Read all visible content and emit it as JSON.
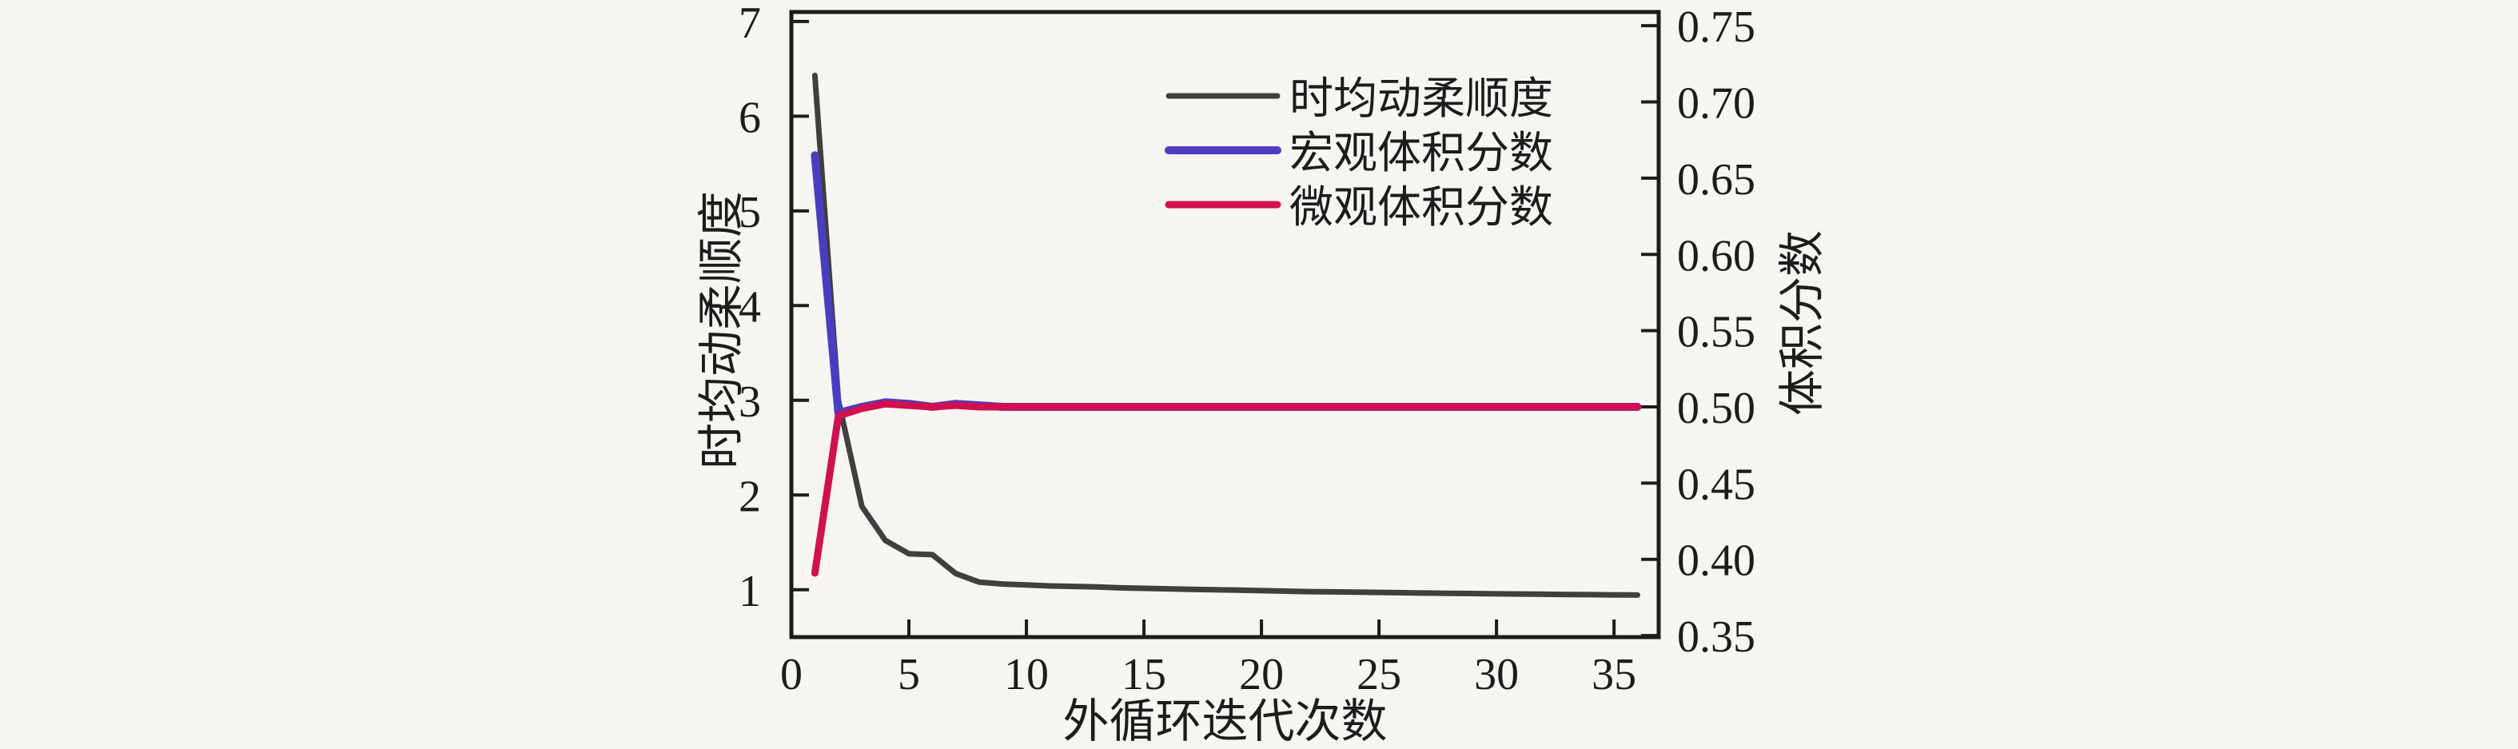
{
  "figure": {
    "background": "#f6f5f2",
    "axis_color": "#1c1c1c"
  },
  "chart_data": {
    "type": "line",
    "title": "",
    "xlabel": "外循环迭代次数",
    "ylabel_left": "时均动柔顺度",
    "ylabel_right": "体积分数",
    "grid": false,
    "legend_position": "upper center",
    "xlim": [
      0,
      36.9
    ],
    "x_ticks": [
      0,
      5,
      10,
      15,
      20,
      25,
      30,
      35
    ],
    "left_ylim": [
      0.5,
      7.1
    ],
    "left_ticks": [
      7,
      6,
      5,
      4,
      3,
      2,
      1
    ],
    "right_ylim": [
      0.349,
      0.759
    ],
    "right_ticks": [
      0.75,
      0.7,
      0.65,
      0.6,
      0.55,
      0.5,
      0.45,
      0.4,
      0.35
    ],
    "x": [
      1,
      2,
      3,
      4,
      5,
      6,
      7,
      8,
      9,
      10,
      11,
      12,
      13,
      14,
      15,
      16,
      17,
      18,
      19,
      20,
      21,
      22,
      23,
      24,
      25,
      26,
      27,
      28,
      29,
      30,
      31,
      32,
      33,
      34,
      35,
      36
    ],
    "series": [
      {
        "id": "series-time-averaged-dynamic-compliance",
        "name": "时均动柔顺度",
        "axis": "left",
        "color": "#3f3f3f",
        "width": 7,
        "values": [
          6.43,
          3.0,
          1.88,
          1.52,
          1.38,
          1.37,
          1.17,
          1.08,
          1.06,
          1.05,
          1.04,
          1.035,
          1.03,
          1.02,
          1.015,
          1.01,
          1.005,
          1.0,
          0.995,
          0.99,
          0.985,
          0.98,
          0.978,
          0.975,
          0.972,
          0.968,
          0.965,
          0.962,
          0.96,
          0.957,
          0.955,
          0.952,
          0.95,
          0.948,
          0.946,
          0.944
        ]
      },
      {
        "id": "series-macro-volume-fraction",
        "name": "宏观体积分数",
        "axis": "right",
        "color": "#4a3ec0",
        "width": 10,
        "values": [
          0.665,
          0.496,
          0.5,
          0.503,
          0.502,
          0.5,
          0.502,
          0.501,
          0.5,
          0.5,
          0.5,
          0.5,
          0.5,
          0.5,
          0.5,
          0.5,
          0.5,
          0.5,
          0.5,
          0.5,
          0.5,
          0.5,
          0.5,
          0.5,
          0.5,
          0.5,
          0.5,
          0.5,
          0.5,
          0.5,
          0.5,
          0.5,
          0.5,
          0.5,
          0.5,
          0.5
        ]
      },
      {
        "id": "series-micro-volume-fraction",
        "name": "微观体积分数",
        "axis": "right",
        "color": "#d11050",
        "width": 9,
        "values": [
          0.391,
          0.494,
          0.499,
          0.502,
          0.501,
          0.5,
          0.501,
          0.5,
          0.5,
          0.5,
          0.5,
          0.5,
          0.5,
          0.5,
          0.5,
          0.5,
          0.5,
          0.5,
          0.5,
          0.5,
          0.5,
          0.5,
          0.5,
          0.5,
          0.5,
          0.5,
          0.5,
          0.5,
          0.5,
          0.5,
          0.5,
          0.5,
          0.5,
          0.5,
          0.5,
          0.5
        ]
      }
    ]
  }
}
